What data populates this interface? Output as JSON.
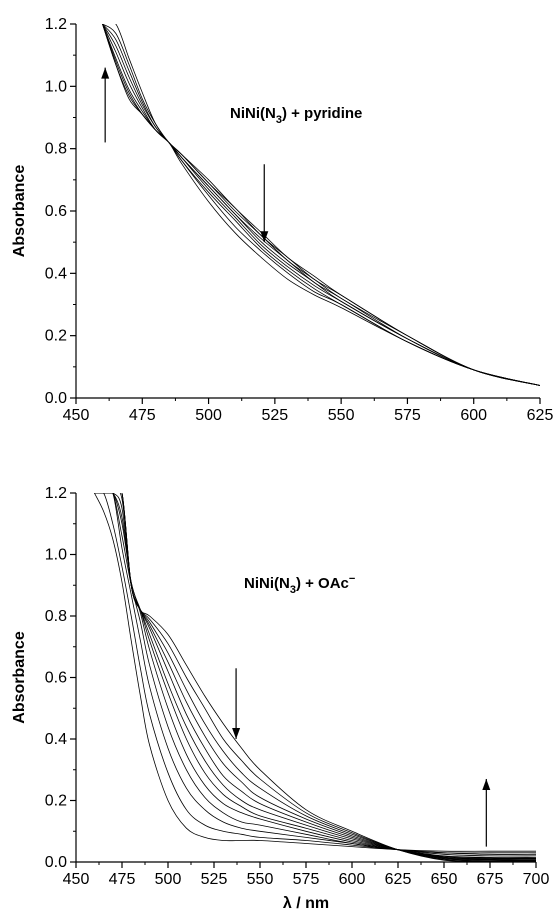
{
  "chart_data": [
    {
      "type": "line",
      "panel": "top",
      "annotation": {
        "main": "NiNi(N",
        "sub": "3",
        "tail": ") + pyridine",
        "sup": ""
      },
      "xlabel": "",
      "ylabel": "Absorbance",
      "xlim": [
        450,
        625
      ],
      "ylim": [
        0,
        1.2
      ],
      "x_ticks": [
        "450",
        "475",
        "500",
        "525",
        "550",
        "575",
        "600",
        "625"
      ],
      "y_ticks": [
        "0.0",
        "0.2",
        "0.4",
        "0.6",
        "0.8",
        "1.0",
        "1.2"
      ],
      "arrows": [
        {
          "direction": "up",
          "x": 461,
          "y_from": 0.82,
          "y_to": 1.06
        },
        {
          "direction": "down",
          "x": 521,
          "y_from": 0.75,
          "y_to": 0.5
        }
      ],
      "x": [
        460,
        465,
        470,
        475,
        480,
        485,
        490,
        500,
        510,
        520,
        530,
        540,
        550,
        575,
        600,
        625
      ],
      "series": [
        {
          "values": [
            1.2,
            1.07,
            0.96,
            0.91,
            0.86,
            0.82,
            0.75,
            0.63,
            0.53,
            0.45,
            0.38,
            0.33,
            0.29,
            0.18,
            0.09,
            0.04
          ]
        },
        {
          "values": [
            1.2,
            1.07,
            0.97,
            0.91,
            0.86,
            0.82,
            0.76,
            0.65,
            0.55,
            0.47,
            0.4,
            0.34,
            0.3,
            0.18,
            0.09,
            0.04
          ]
        },
        {
          "values": [
            1.2,
            1.08,
            0.98,
            0.91,
            0.86,
            0.82,
            0.76,
            0.66,
            0.57,
            0.48,
            0.41,
            0.35,
            0.3,
            0.18,
            0.09,
            0.04
          ]
        },
        {
          "values": [
            1.2,
            1.09,
            0.99,
            0.92,
            0.86,
            0.82,
            0.77,
            0.67,
            0.58,
            0.49,
            0.42,
            0.36,
            0.31,
            0.19,
            0.09,
            0.04
          ]
        },
        {
          "values": [
            1.2,
            1.11,
            1.01,
            0.93,
            0.86,
            0.82,
            0.77,
            0.68,
            0.59,
            0.5,
            0.43,
            0.37,
            0.31,
            0.19,
            0.09,
            0.04
          ]
        },
        {
          "values": [
            1.2,
            1.13,
            1.03,
            0.94,
            0.87,
            0.82,
            0.77,
            0.68,
            0.59,
            0.51,
            0.44,
            0.37,
            0.32,
            0.19,
            0.09,
            0.04
          ]
        },
        {
          "values": [
            1.2,
            1.15,
            1.05,
            0.95,
            0.87,
            0.82,
            0.78,
            0.69,
            0.6,
            0.52,
            0.44,
            0.38,
            0.32,
            0.2,
            0.09,
            0.04
          ]
        },
        {
          "values": [
            1.2,
            1.17,
            1.07,
            0.96,
            0.88,
            0.82,
            0.78,
            0.69,
            0.61,
            0.52,
            0.45,
            0.38,
            0.33,
            0.2,
            0.09,
            0.04
          ]
        },
        {
          "values": [
            1.2,
            1.2,
            1.09,
            0.98,
            0.88,
            0.82,
            0.78,
            0.7,
            0.61,
            0.53,
            0.45,
            0.39,
            0.33,
            0.2,
            0.09,
            0.04
          ]
        }
      ]
    },
    {
      "type": "line",
      "panel": "bottom",
      "annotation": {
        "main": "NiNi(N",
        "sub": "3",
        "tail": ") + OAc",
        "sup": "−"
      },
      "xlabel": "λ / nm",
      "ylabel": "Absorbance",
      "xlim": [
        450,
        700
      ],
      "ylim": [
        0,
        1.2
      ],
      "x_ticks": [
        "450",
        "475",
        "500",
        "525",
        "550",
        "575",
        "600",
        "625",
        "650",
        "675",
        "700"
      ],
      "y_ticks": [
        "0.0",
        "0.2",
        "0.4",
        "0.6",
        "0.8",
        "1.0",
        "1.2"
      ],
      "arrows": [
        {
          "direction": "down",
          "x": 537,
          "y_from": 0.63,
          "y_to": 0.4
        },
        {
          "direction": "up",
          "x": 673,
          "y_from": 0.05,
          "y_to": 0.27
        }
      ],
      "x": [
        460,
        465,
        470,
        475,
        480,
        485,
        490,
        500,
        510,
        520,
        530,
        540,
        550,
        575,
        600,
        625,
        650,
        675,
        700
      ],
      "series": [
        {
          "values": [
            1.2,
            1.14,
            1.05,
            0.91,
            0.72,
            0.54,
            0.38,
            0.2,
            0.11,
            0.08,
            0.07,
            0.07,
            0.07,
            0.06,
            0.05,
            0.04,
            0.035,
            0.035,
            0.035
          ]
        },
        {
          "values": [
            1.2,
            1.2,
            1.1,
            0.96,
            0.8,
            0.63,
            0.48,
            0.29,
            0.17,
            0.12,
            0.1,
            0.09,
            0.08,
            0.07,
            0.055,
            0.04,
            0.03,
            0.03,
            0.03
          ]
        },
        {
          "values": [
            1.2,
            1.2,
            1.2,
            1.02,
            0.87,
            0.72,
            0.57,
            0.37,
            0.24,
            0.17,
            0.13,
            0.11,
            0.1,
            0.08,
            0.06,
            0.04,
            0.03,
            0.025,
            0.025
          ]
        },
        {
          "values": [
            1.2,
            1.2,
            1.2,
            1.06,
            0.9,
            0.78,
            0.64,
            0.44,
            0.3,
            0.21,
            0.16,
            0.13,
            0.12,
            0.09,
            0.06,
            0.04,
            0.025,
            0.02,
            0.02
          ]
        },
        {
          "values": [
            1.2,
            1.2,
            1.2,
            1.1,
            0.91,
            0.81,
            0.69,
            0.5,
            0.35,
            0.25,
            0.19,
            0.16,
            0.14,
            0.1,
            0.065,
            0.04,
            0.02,
            0.015,
            0.015
          ]
        },
        {
          "values": [
            1.2,
            1.2,
            1.2,
            1.12,
            0.91,
            0.82,
            0.72,
            0.55,
            0.4,
            0.29,
            0.22,
            0.18,
            0.15,
            0.11,
            0.07,
            0.04,
            0.018,
            0.013,
            0.012
          ]
        },
        {
          "values": [
            1.2,
            1.2,
            1.2,
            1.15,
            0.9,
            0.82,
            0.74,
            0.58,
            0.44,
            0.33,
            0.25,
            0.2,
            0.17,
            0.12,
            0.075,
            0.04,
            0.016,
            0.011,
            0.01
          ]
        },
        {
          "values": [
            1.2,
            1.2,
            1.2,
            1.18,
            0.9,
            0.82,
            0.76,
            0.62,
            0.48,
            0.37,
            0.28,
            0.23,
            0.19,
            0.13,
            0.08,
            0.04,
            0.014,
            0.009,
            0.008
          ]
        },
        {
          "values": [
            1.2,
            1.2,
            1.2,
            1.2,
            0.9,
            0.82,
            0.77,
            0.65,
            0.52,
            0.41,
            0.32,
            0.26,
            0.21,
            0.14,
            0.085,
            0.04,
            0.012,
            0.007,
            0.006
          ]
        },
        {
          "values": [
            1.2,
            1.2,
            1.2,
            1.2,
            0.9,
            0.82,
            0.78,
            0.68,
            0.56,
            0.45,
            0.36,
            0.29,
            0.24,
            0.15,
            0.09,
            0.04,
            0.01,
            0.005,
            0.004
          ]
        },
        {
          "values": [
            1.2,
            1.2,
            1.2,
            1.2,
            0.9,
            0.82,
            0.79,
            0.71,
            0.6,
            0.5,
            0.4,
            0.33,
            0.27,
            0.16,
            0.095,
            0.04,
            0.008,
            0.003,
            0.002
          ]
        },
        {
          "values": [
            1.2,
            1.2,
            1.2,
            1.2,
            0.9,
            0.82,
            0.8,
            0.74,
            0.64,
            0.54,
            0.45,
            0.37,
            0.3,
            0.17,
            0.1,
            0.04,
            0.006,
            0.002,
            0.001
          ]
        }
      ]
    }
  ]
}
